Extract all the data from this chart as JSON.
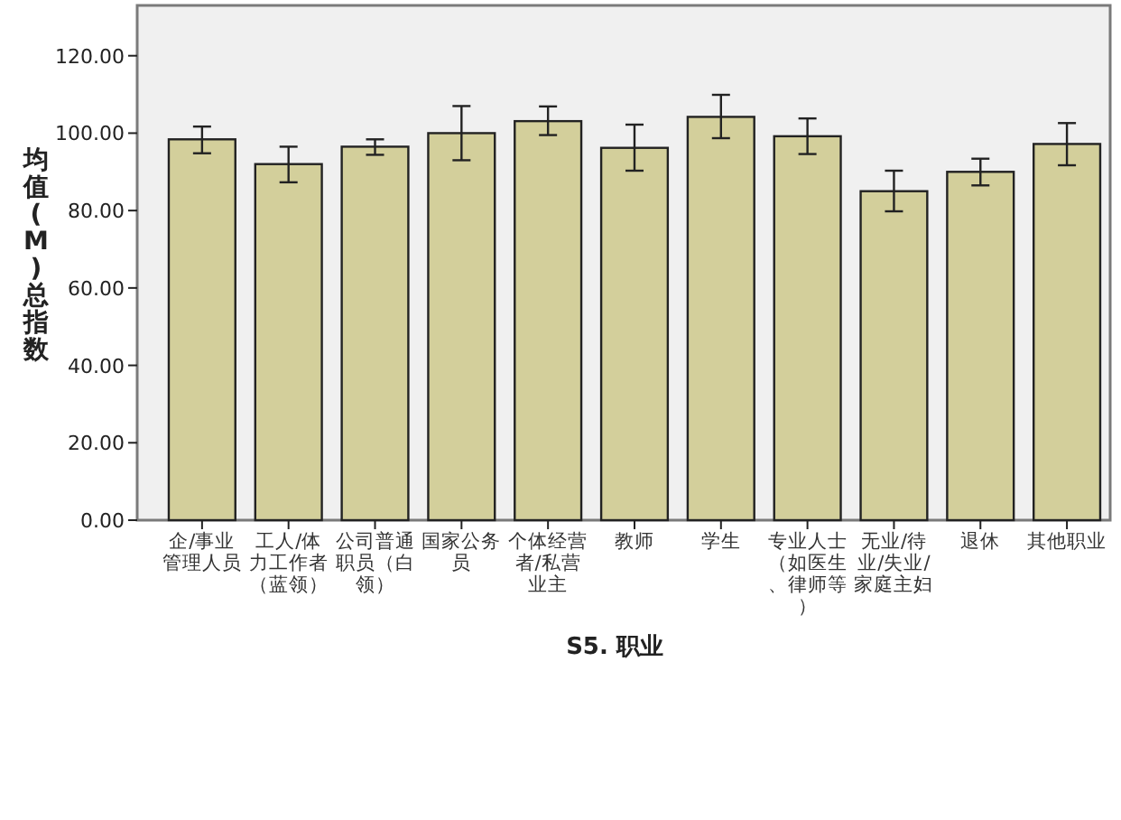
{
  "chart_data": {
    "type": "bar",
    "xlabel": "S5. 职业",
    "ylabel": "均值(M)总指数",
    "categories": [
      "企/事业管理人员",
      "工人/体力工作者（蓝领）",
      "公司普通职员（白领）",
      "国家公务员",
      "个体经营者/私营业主",
      "教师",
      "学生",
      "专业人士（如医生、律师等）",
      "无业/待业/失业/家庭主妇",
      "退休",
      "其他职业"
    ],
    "values": [
      98.4,
      92.0,
      96.5,
      100.0,
      103.1,
      96.2,
      104.2,
      99.2,
      85.0,
      90.0,
      97.2
    ],
    "errors": [
      [
        94.8,
        101.7
      ],
      [
        87.3,
        96.5
      ],
      [
        94.4,
        98.4
      ],
      [
        93.0,
        107.0
      ],
      [
        99.5,
        106.9
      ],
      [
        90.3,
        102.2
      ],
      [
        98.7,
        109.9
      ],
      [
        94.6,
        103.8
      ],
      [
        79.8,
        90.3
      ],
      [
        86.5,
        93.4
      ],
      [
        91.7,
        102.6
      ]
    ],
    "color": "#d3cf9b",
    "ylim": [
      0,
      133
    ],
    "yticks": [
      {
        "value": 0,
        "label": "0.00"
      },
      {
        "value": 20,
        "label": "20.00"
      },
      {
        "value": 40,
        "label": "40.00"
      },
      {
        "value": 60,
        "label": "60.00"
      },
      {
        "value": 80,
        "label": "80.00"
      },
      {
        "value": 100,
        "label": "100.00"
      },
      {
        "value": 120,
        "label": "120.00"
      }
    ],
    "grid": false
  }
}
